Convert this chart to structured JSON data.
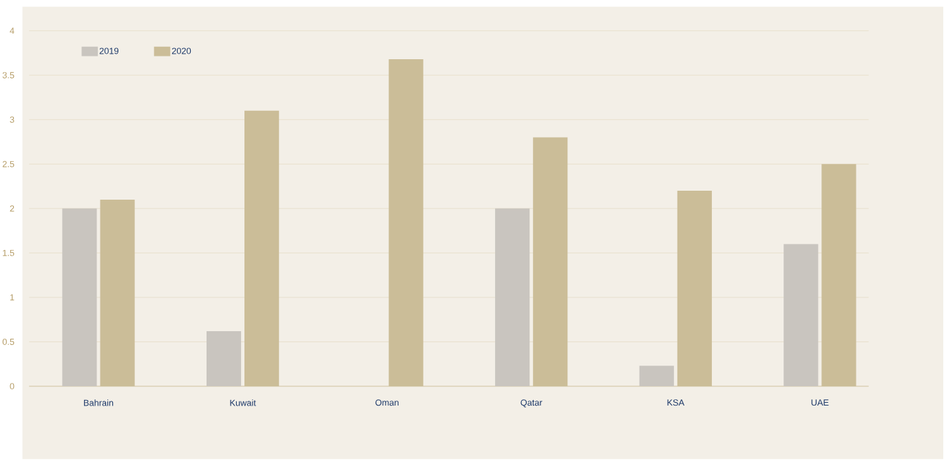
{
  "chart_data": {
    "type": "bar",
    "categories": [
      "Bahrain",
      "Kuwait",
      "Oman",
      "Qatar",
      "KSA",
      "UAE"
    ],
    "series": [
      {
        "name": "2019",
        "color": "#c9c5bf",
        "values": [
          2.0,
          0.62,
          null,
          2.0,
          0.23,
          1.6
        ]
      },
      {
        "name": "2020",
        "color": "#cbbd98",
        "values": [
          2.1,
          3.1,
          3.68,
          2.8,
          2.2,
          2.5
        ]
      }
    ],
    "ylim": [
      0,
      4
    ],
    "yticks": [
      0,
      0.5,
      1,
      1.5,
      2,
      2.5,
      3,
      3.5,
      4
    ],
    "grid": "y",
    "legend": "top left"
  }
}
